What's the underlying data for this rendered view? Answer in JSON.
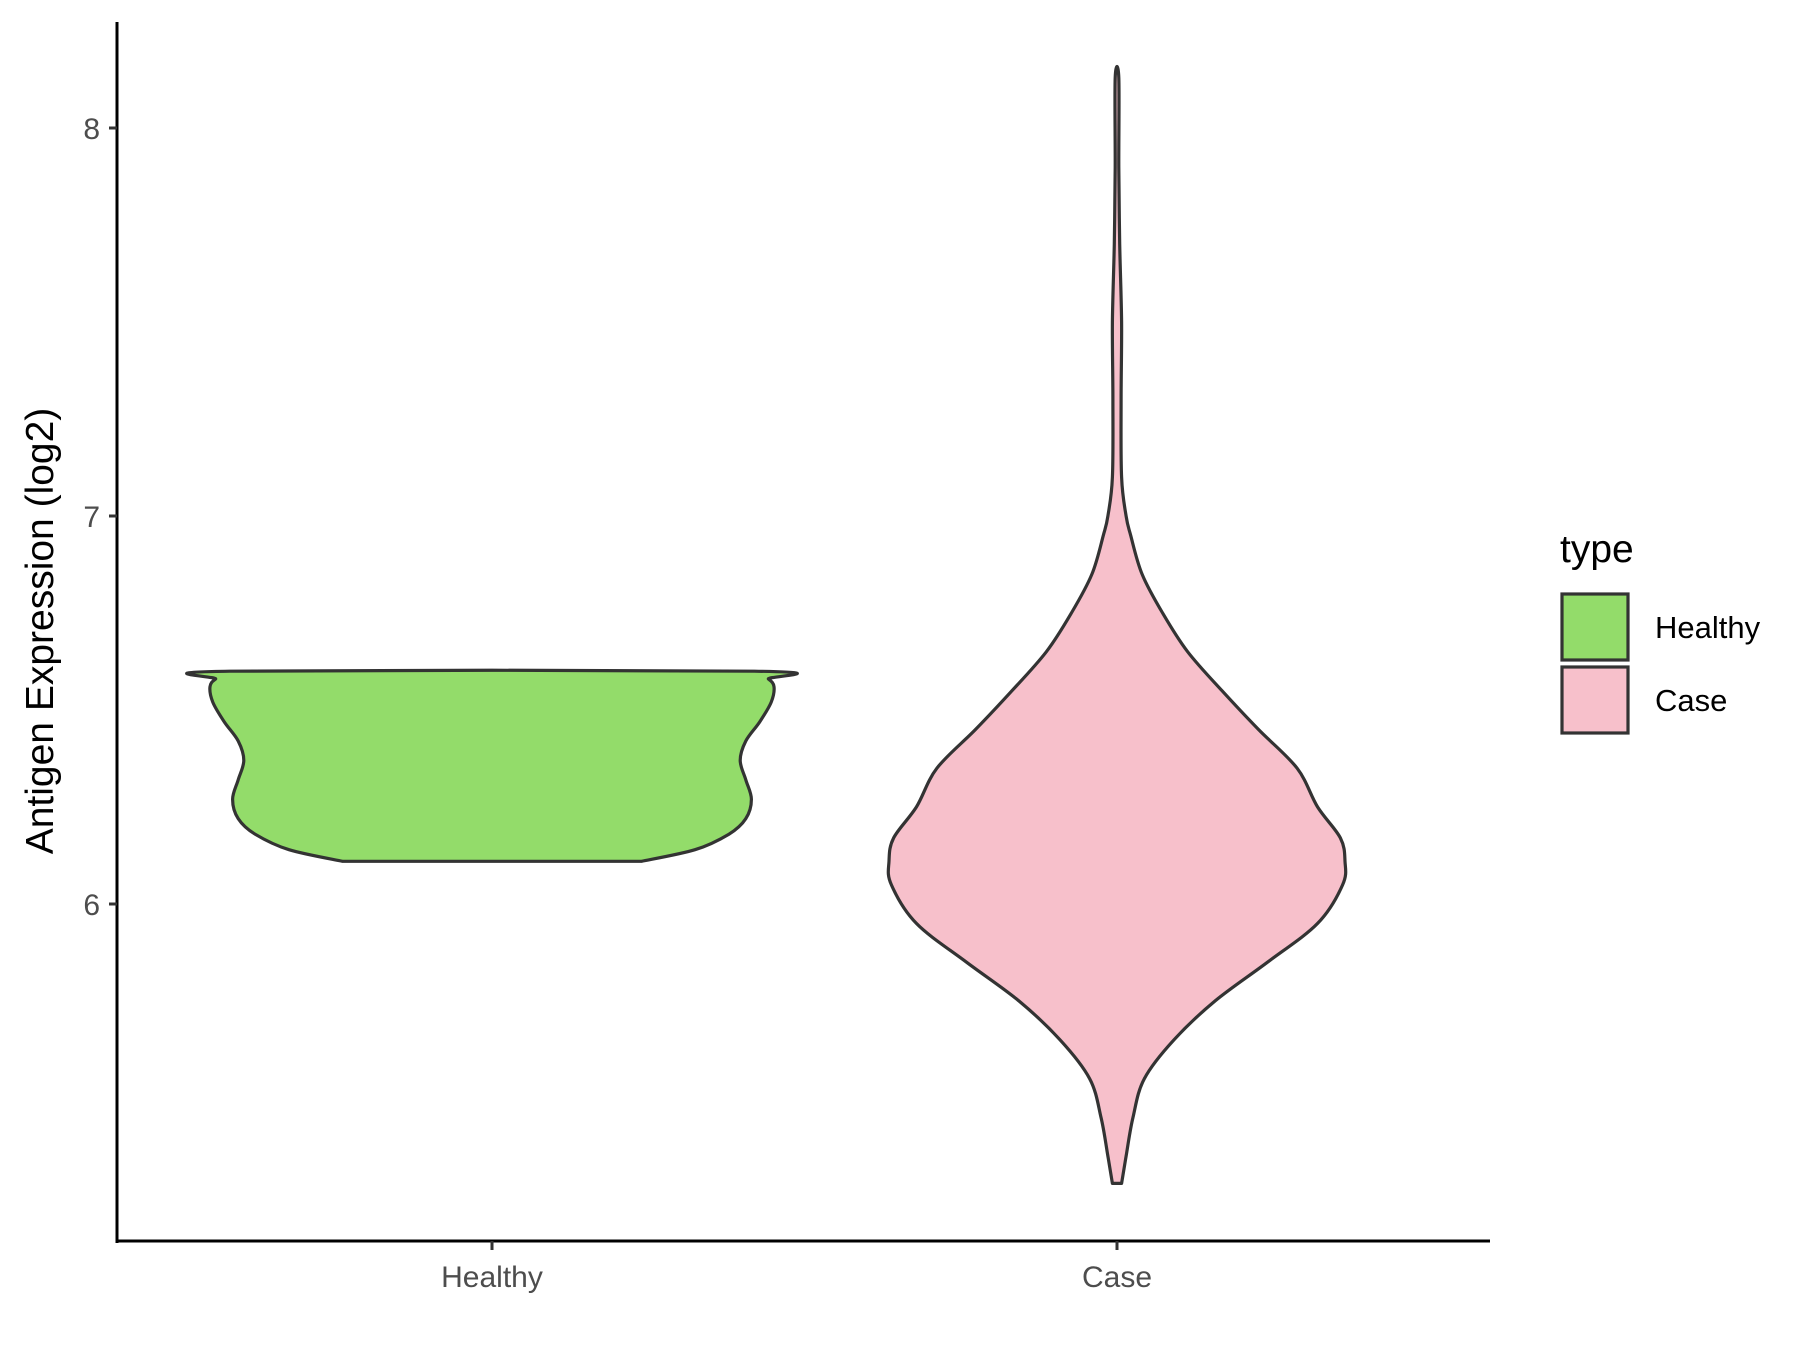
{
  "chart_data": {
    "type": "violin",
    "ylabel": "Antigen Expression (log2)",
    "xlabel": "",
    "categories": [
      "Healthy",
      "Case"
    ],
    "ylim": [
      5.2,
      8.27
    ],
    "y_ticks": [
      6,
      7,
      8
    ],
    "grid": false,
    "legend": {
      "title": "type",
      "position": "right",
      "entries": [
        "Healthy",
        "Case"
      ]
    },
    "series": [
      {
        "name": "Healthy",
        "color": "#93dc6a",
        "range": [
          6.11,
          6.6
        ],
        "density": [
          [
            6.11,
            0.53
          ],
          [
            6.14,
            0.72
          ],
          [
            6.18,
            0.84
          ],
          [
            6.22,
            0.9
          ],
          [
            6.27,
            0.92
          ],
          [
            6.32,
            0.9
          ],
          [
            6.37,
            0.88
          ],
          [
            6.42,
            0.9
          ],
          [
            6.47,
            0.95
          ],
          [
            6.52,
            0.99
          ],
          [
            6.56,
            1.0
          ],
          [
            6.58,
            0.98
          ],
          [
            6.6,
            0.93
          ]
        ]
      },
      {
        "name": "Case",
        "color": "#f7c0cb",
        "range": [
          5.28,
          8.13
        ],
        "density": [
          [
            5.28,
            0.02
          ],
          [
            5.35,
            0.04
          ],
          [
            5.45,
            0.07
          ],
          [
            5.55,
            0.12
          ],
          [
            5.65,
            0.25
          ],
          [
            5.75,
            0.43
          ],
          [
            5.85,
            0.66
          ],
          [
            5.95,
            0.88
          ],
          [
            6.05,
            0.99
          ],
          [
            6.11,
            1.0
          ],
          [
            6.17,
            0.98
          ],
          [
            6.25,
            0.88
          ],
          [
            6.35,
            0.79
          ],
          [
            6.45,
            0.62
          ],
          [
            6.55,
            0.46
          ],
          [
            6.65,
            0.31
          ],
          [
            6.75,
            0.2
          ],
          [
            6.85,
            0.11
          ],
          [
            6.95,
            0.06
          ],
          [
            7.0,
            0.04
          ],
          [
            7.1,
            0.02
          ],
          [
            7.3,
            0.018
          ],
          [
            7.5,
            0.02
          ],
          [
            7.7,
            0.012
          ],
          [
            7.9,
            0.008
          ],
          [
            8.13,
            0.008
          ]
        ]
      }
    ]
  }
}
